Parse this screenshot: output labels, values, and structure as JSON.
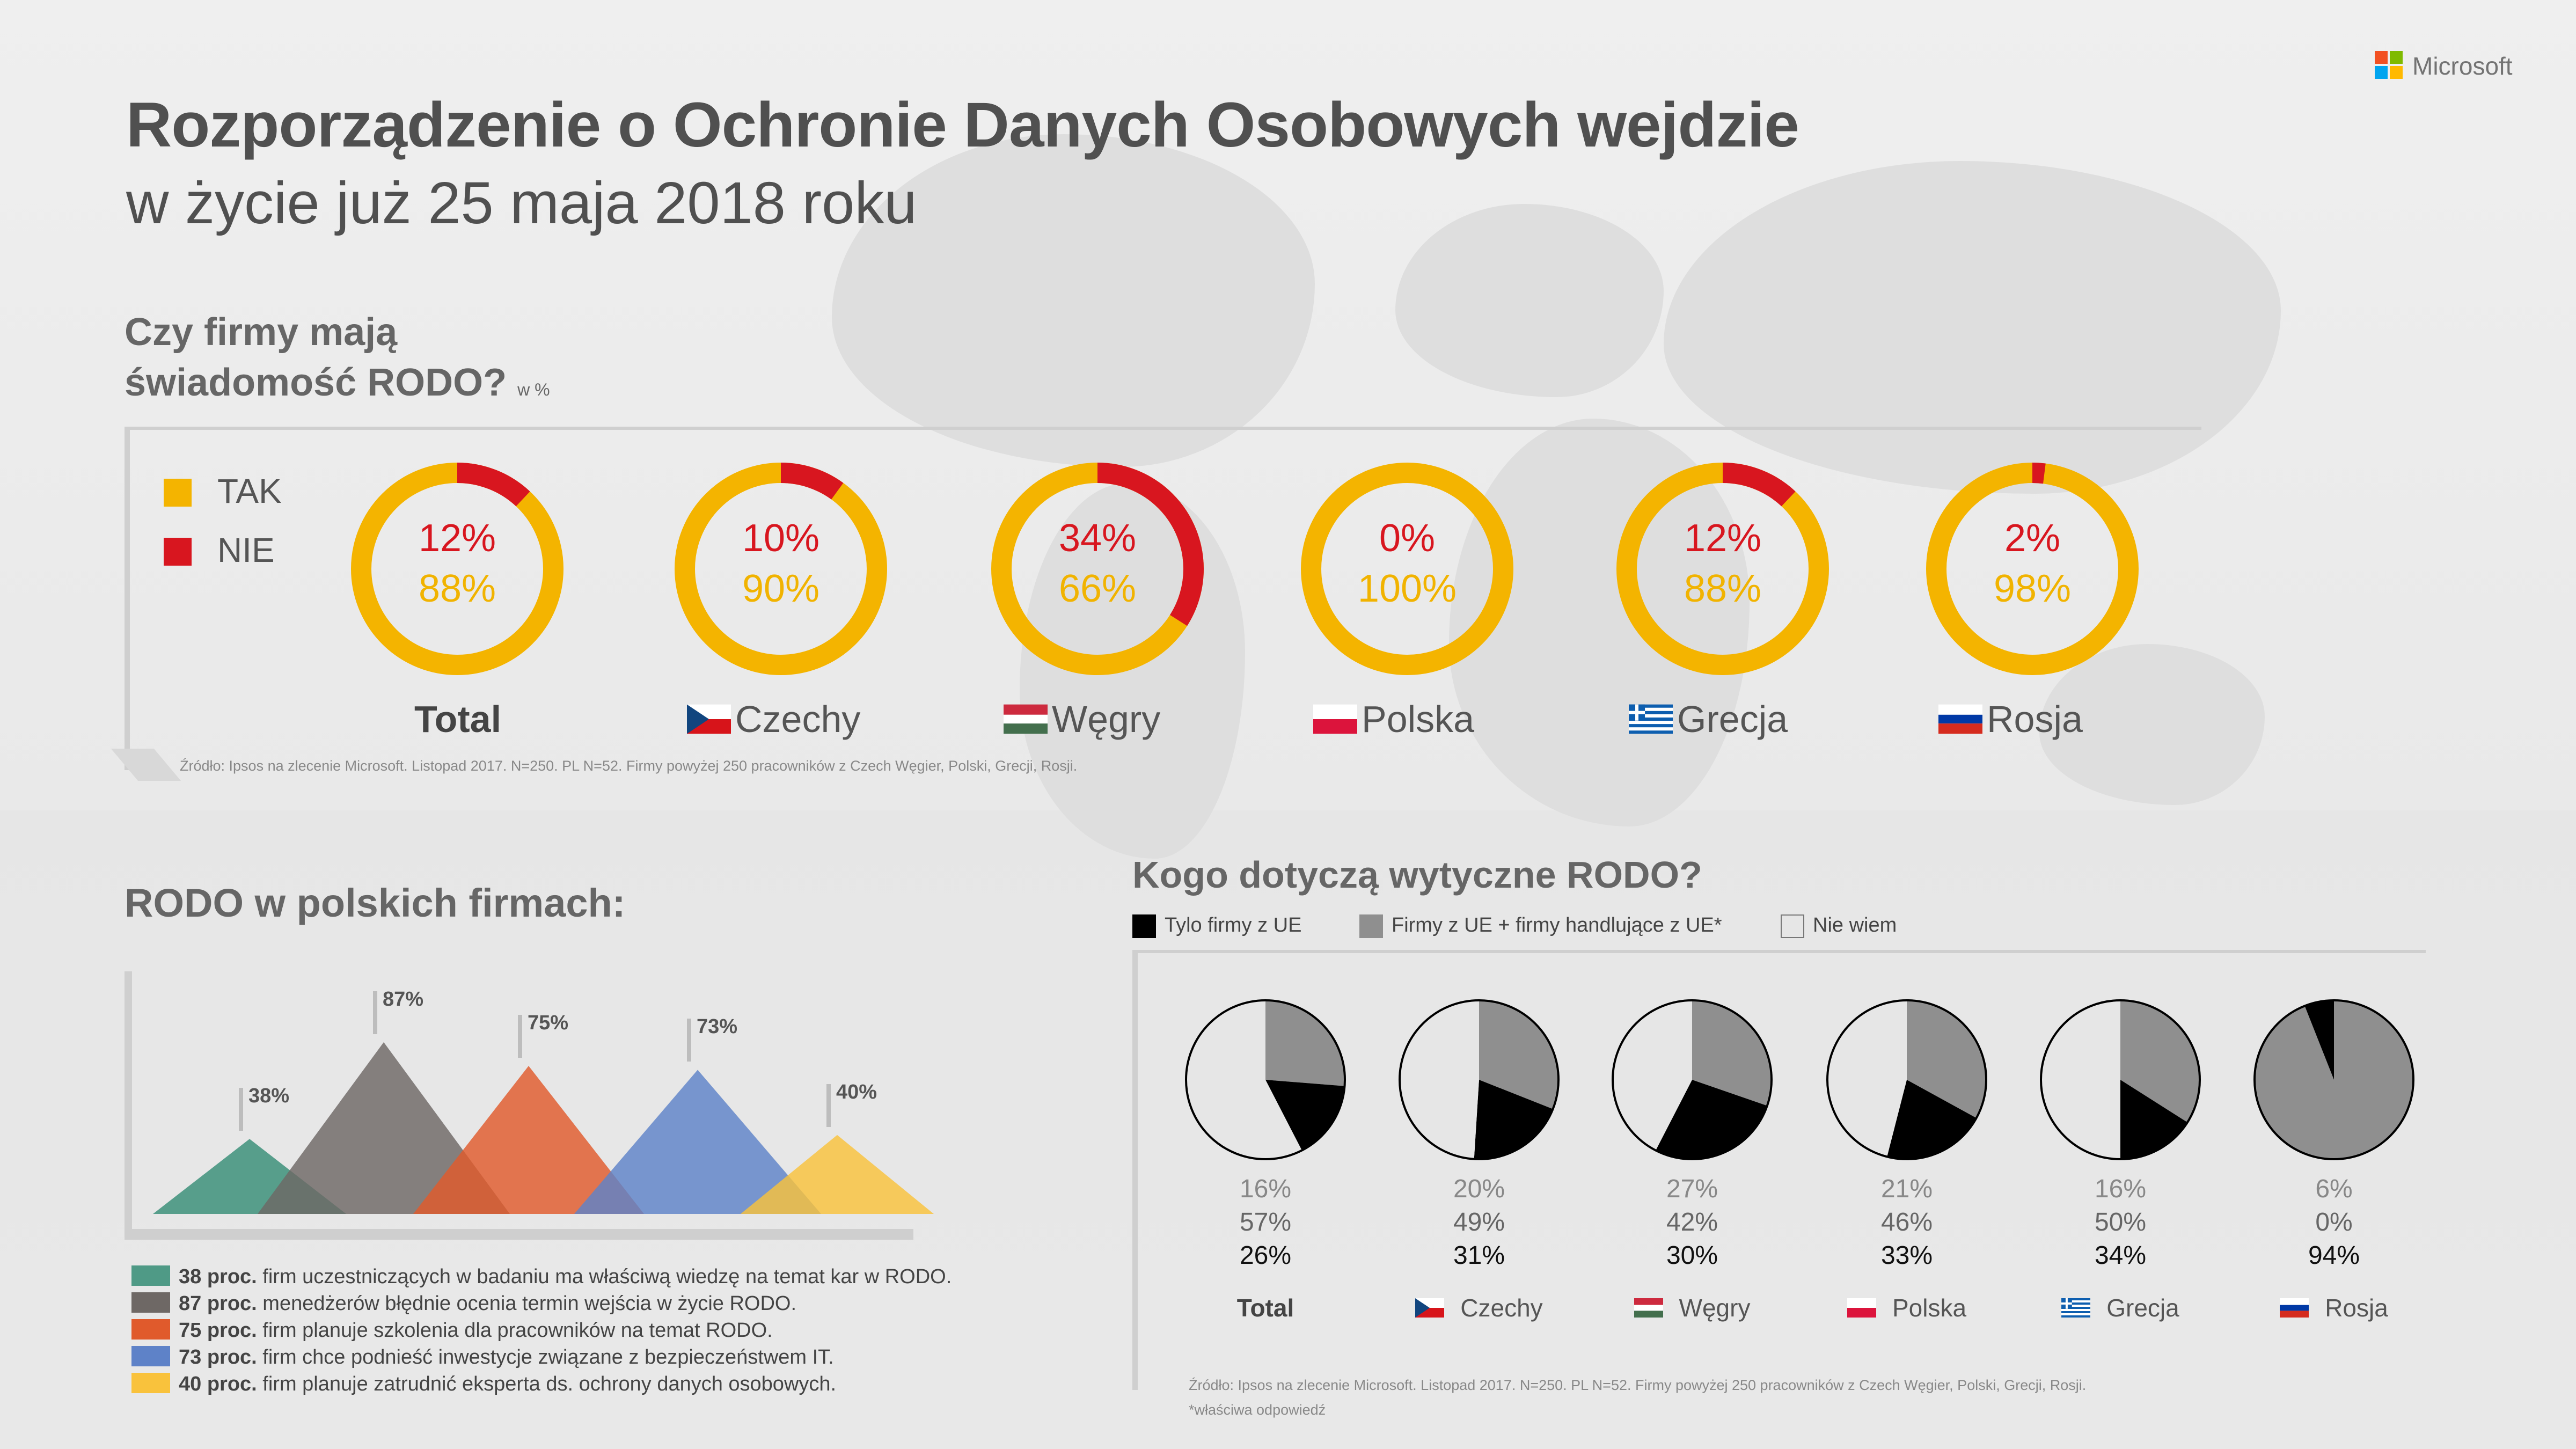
{
  "brand": {
    "name": "Microsoft"
  },
  "header": {
    "title": "Rozporządzenie o Ochronie Danych Osobowych wejdzie",
    "subtitle": "w życie już 25 maja 2018 roku"
  },
  "awareness": {
    "title_line1": "Czy firmy mają",
    "title_line2": "świadomość RODO?",
    "unit": "w %",
    "legend": [
      {
        "label": "TAK",
        "color": "#f4b400"
      },
      {
        "label": "NIE",
        "color": "#d8161f"
      }
    ],
    "source": "Źródło: Ipsos na zlecenie Microsoft. Listopad 2017. N=250. PL N=52. Firmy powyżej 250 pracowników z Czech Węgier, Polski, Grecji, Rosji."
  },
  "polish": {
    "title": "RODO w polskich firmach:",
    "legend": [
      {
        "bold": "38 proc.",
        "text": " firm uczestniczących w badaniu ma właściwą wiedzę na temat kar w RODO.",
        "color": "#4f9a86"
      },
      {
        "bold": "87 proc.",
        "text": " menedżerów błędnie ocenia termin wejścia w życie RODO.",
        "color": "#6e6865"
      },
      {
        "bold": "75 proc.",
        "text": " firm planuje szkolenia dla pracowników na temat RODO.",
        "color": "#e05a2c"
      },
      {
        "bold": "73 proc.",
        "text": " firm chce podnieść inwestycje związane z bezpieczeństwem IT.",
        "color": "#5e82c8"
      },
      {
        "bold": "40 proc.",
        "text": " firm planuje zatrudnić eksperta ds. ochrony danych osobowych.",
        "color": "#f9c23c"
      }
    ]
  },
  "scope": {
    "title": "Kogo dotyczą wytyczne RODO?",
    "legend": [
      {
        "label": "Tylo firmy z UE",
        "color": "#000000"
      },
      {
        "label": "Firmy z UE + firmy handlujące z UE*",
        "color": "#8f8f8f"
      },
      {
        "label": "Nie wiem",
        "color": "#e6e6e6"
      }
    ],
    "source": "Źródło: Ipsos na zlecenie Microsoft. Listopad 2017. N=250. PL N=52. Firmy powyżej 250 pracowników z Czech Węgier, Polski, Grecji, Rosji.",
    "footnote": "*właściwa odpowiedź"
  },
  "chart_data": [
    {
      "type": "pie",
      "title": "Czy firmy mają świadomość RODO?",
      "unit": "w %",
      "categories": [
        "Total",
        "Czechy",
        "Węgry",
        "Polska",
        "Grecja",
        "Rosja"
      ],
      "series": [
        {
          "name": "TAK",
          "values": [
            88,
            90,
            66,
            100,
            88,
            98
          ],
          "labels": [
            "88%",
            "90%",
            "66%",
            "100%",
            "88%",
            "98%"
          ]
        },
        {
          "name": "NIE",
          "values": [
            12,
            10,
            34,
            0,
            12,
            2
          ],
          "labels": [
            "12%",
            "10%",
            "34%",
            "0%",
            "12%",
            "2%"
          ]
        }
      ]
    },
    {
      "type": "bar",
      "title": "RODO w polskich firmach:",
      "categories": [
        "38 proc.",
        "87 proc.",
        "75 proc.",
        "73 proc.",
        "40 proc."
      ],
      "values": [
        38,
        87,
        75,
        73,
        40
      ],
      "labels": [
        "38%",
        "87%",
        "75%",
        "73%",
        "40%"
      ],
      "ylim": [
        0,
        100
      ]
    },
    {
      "type": "pie",
      "title": "Kogo dotyczą wytyczne RODO?",
      "categories": [
        "Total",
        "Czechy",
        "Węgry",
        "Polska",
        "Grecja",
        "Rosja"
      ],
      "series": [
        {
          "name": "Tylo firmy z UE",
          "values": [
            16,
            20,
            27,
            21,
            16,
            6
          ],
          "labels": [
            "16%",
            "20%",
            "27%",
            "21%",
            "16%",
            "6%"
          ]
        },
        {
          "name": "Nie wiem",
          "values": [
            57,
            49,
            42,
            46,
            50,
            0
          ],
          "labels": [
            "57%",
            "49%",
            "42%",
            "46%",
            "50%",
            "0%"
          ]
        },
        {
          "name": "Firmy z UE + firmy handlujące z UE*",
          "values": [
            26,
            31,
            30,
            33,
            34,
            94
          ],
          "labels": [
            "26%",
            "31%",
            "30%",
            "33%",
            "34%",
            "94%"
          ]
        }
      ]
    }
  ]
}
